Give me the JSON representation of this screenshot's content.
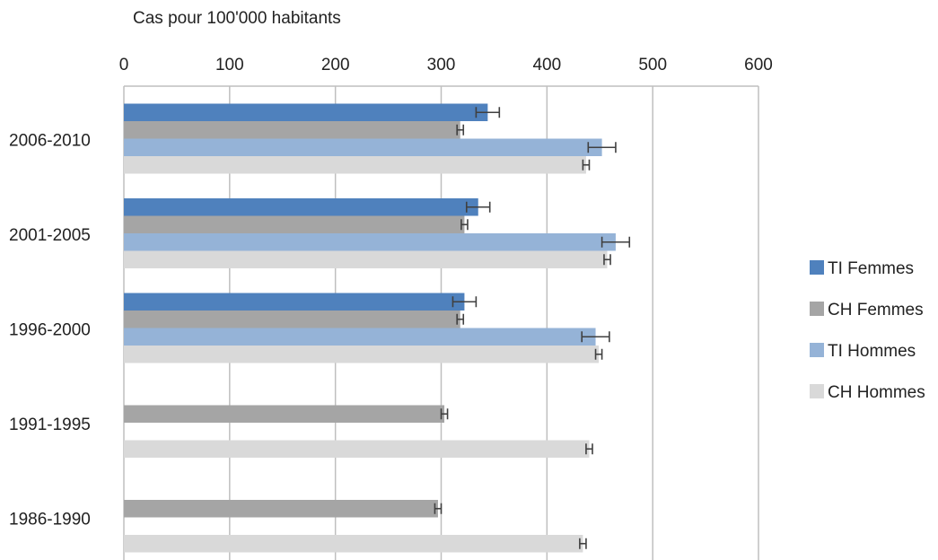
{
  "chart_data": {
    "type": "bar",
    "orientation": "horizontal",
    "title": "",
    "xlabel": "Cas pour 100'000 habitants",
    "ylabel": "",
    "xlim": [
      0,
      600
    ],
    "xticks": [
      0,
      100,
      200,
      300,
      400,
      500,
      600
    ],
    "grid": true,
    "legend_position": "right",
    "categories": [
      "2006-2010",
      "2001-2005",
      "1996-2000",
      "1991-1995",
      "1986-1990"
    ],
    "series": [
      {
        "name": "TI Femmes",
        "color": "#4f81bd",
        "values": [
          344,
          335,
          322,
          null,
          null
        ],
        "errors": [
          11,
          11,
          11,
          null,
          null
        ]
      },
      {
        "name": "CH Femmes",
        "color": "#a5a5a5",
        "values": [
          318,
          322,
          318,
          303,
          297
        ],
        "errors": [
          3,
          3,
          3,
          3,
          3
        ]
      },
      {
        "name": "TI Hommes",
        "color": "#95b3d7",
        "values": [
          452,
          465,
          446,
          null,
          null
        ],
        "errors": [
          13,
          13,
          13,
          null,
          null
        ]
      },
      {
        "name": "CH Hommes",
        "color": "#d9d9d9",
        "values": [
          437,
          457,
          449,
          440,
          434
        ],
        "errors": [
          3,
          3,
          3,
          3,
          3
        ]
      }
    ]
  }
}
